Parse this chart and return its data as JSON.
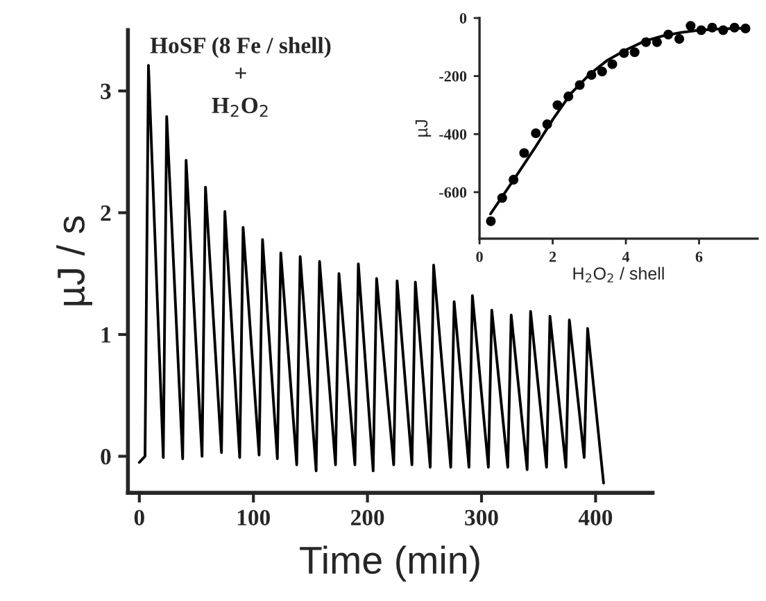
{
  "chart_data": [
    {
      "type": "line",
      "xlabel": "Time (min)",
      "ylabel": "µJ / s",
      "xlim": [
        -10,
        450
      ],
      "ylim": [
        -0.3,
        3.5
      ],
      "xticks": [
        0,
        100,
        200,
        300,
        400
      ],
      "yticks": [
        0,
        1,
        2,
        3
      ],
      "grid": false,
      "legend": false,
      "marker": "none",
      "line_style": "solid",
      "annotations": [
        "HoSF (8 Fe / shell)",
        "+",
        "H$_{2}$O$_{2}$"
      ],
      "series": [
        {
          "color": "#000000",
          "x": [
            0,
            5,
            8,
            21,
            24,
            38,
            41,
            55,
            58,
            72,
            75,
            88,
            91,
            105,
            108,
            121,
            124,
            138,
            141,
            155,
            158,
            172,
            175,
            189,
            192,
            205,
            208,
            223,
            226,
            239,
            242,
            255,
            258,
            273,
            276,
            289,
            292,
            306,
            309,
            323,
            326,
            340,
            343,
            357,
            360,
            374,
            377,
            390,
            393,
            407
          ],
          "values": [
            -0.05,
            0.0,
            3.21,
            -0.01,
            2.79,
            -0.02,
            2.43,
            0.0,
            2.21,
            0.03,
            2.01,
            -0.01,
            1.88,
            0.01,
            1.78,
            -0.02,
            1.67,
            -0.07,
            1.64,
            -0.12,
            1.6,
            -0.07,
            1.5,
            -0.07,
            1.58,
            -0.12,
            1.46,
            -0.07,
            1.44,
            -0.07,
            1.43,
            -0.09,
            1.57,
            -0.09,
            1.27,
            -0.09,
            1.32,
            -0.09,
            1.2,
            -0.09,
            1.16,
            -0.11,
            1.19,
            -0.09,
            1.15,
            -0.09,
            1.12,
            -0.01,
            1.05,
            -0.22
          ]
        }
      ]
    },
    {
      "type": "scatter",
      "xlabel": "H$_{2}$O$_{2}$ / shell",
      "ylabel": "µJ",
      "xlim": [
        0,
        7.6
      ],
      "ylim": [
        -760,
        0
      ],
      "xticks": [
        0,
        2,
        4,
        6
      ],
      "yticks": [
        -600,
        -400,
        -200,
        0
      ],
      "grid": false,
      "legend": false,
      "series": [
        {
          "type": "scatter",
          "marker": "circle",
          "color": "#000000",
          "x": [
            0.31,
            0.62,
            0.93,
            1.22,
            1.54,
            1.85,
            2.13,
            2.43,
            2.74,
            3.06,
            3.35,
            3.63,
            3.95,
            4.24,
            4.55,
            4.85,
            5.16,
            5.46,
            5.77,
            6.06,
            6.36,
            6.66,
            6.97,
            7.27
          ],
          "values": [
            -700,
            -620,
            -557,
            -465,
            -397,
            -366,
            -300,
            -270,
            -231,
            -196,
            -184,
            -159,
            -121,
            -118,
            -83,
            -83,
            -57,
            -72,
            -27,
            -42,
            -33,
            -42,
            -33,
            -36
          ]
        },
        {
          "type": "line",
          "marker": "none",
          "line_style": "solid",
          "color": "#000000",
          "x": [
            0.3,
            1,
            1.5,
            2,
            2.5,
            3,
            3.5,
            4,
            4.5,
            5,
            5.5,
            6,
            6.5,
            7,
            7.3
          ],
          "values": [
            -675,
            -545,
            -450,
            -350,
            -260,
            -195,
            -145,
            -110,
            -80,
            -62,
            -50,
            -42,
            -38,
            -36,
            -35
          ]
        }
      ]
    }
  ]
}
